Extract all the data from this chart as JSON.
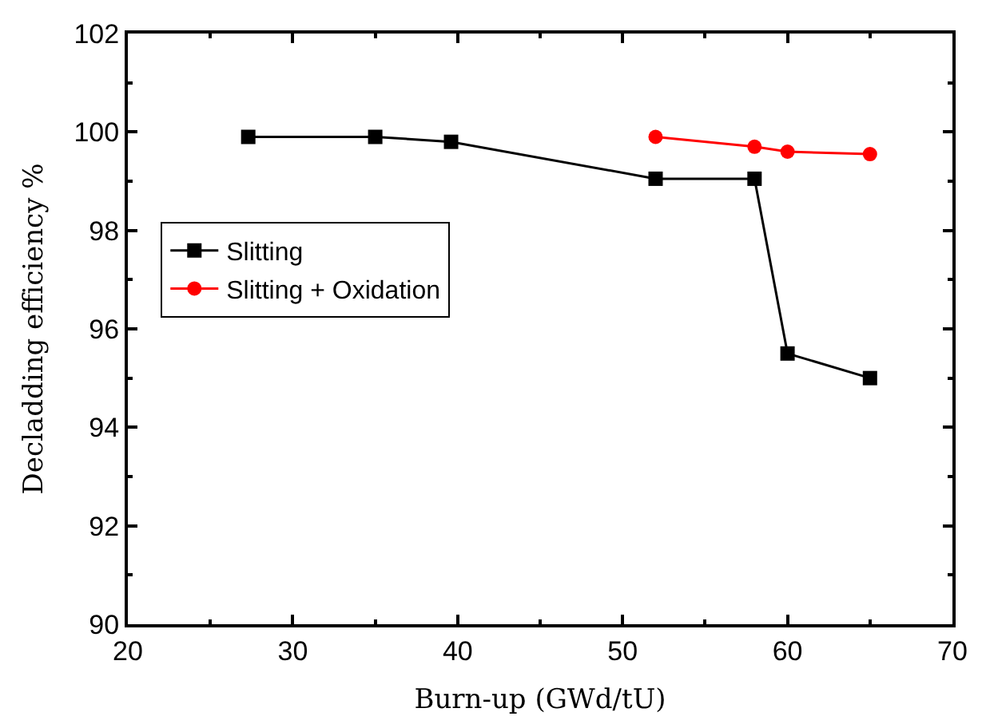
{
  "chart_data": {
    "type": "line",
    "xlabel": "Burn-up (GWd/tU)",
    "ylabel": "Decladding efficiency %",
    "xlim": [
      20,
      70
    ],
    "xticks": [
      20,
      30,
      40,
      50,
      60,
      70
    ],
    "ylim": [
      90,
      102
    ],
    "yticks": [
      90,
      92,
      94,
      96,
      98,
      100,
      102
    ],
    "legend": "left",
    "series": [
      {
        "name": "Slitting",
        "color": "#000000",
        "marker": "square",
        "x": [
          27.3,
          35,
          39.6,
          52,
          58,
          60,
          65
        ],
        "values": [
          99.9,
          99.9,
          99.8,
          99.05,
          99.05,
          95.5,
          95.0
        ]
      },
      {
        "name": "Slitting + Oxidation",
        "color": "#ff0000",
        "marker": "circle",
        "x": [
          52,
          58,
          60,
          65
        ],
        "values": [
          99.9,
          99.7,
          99.6,
          99.55
        ]
      }
    ]
  }
}
